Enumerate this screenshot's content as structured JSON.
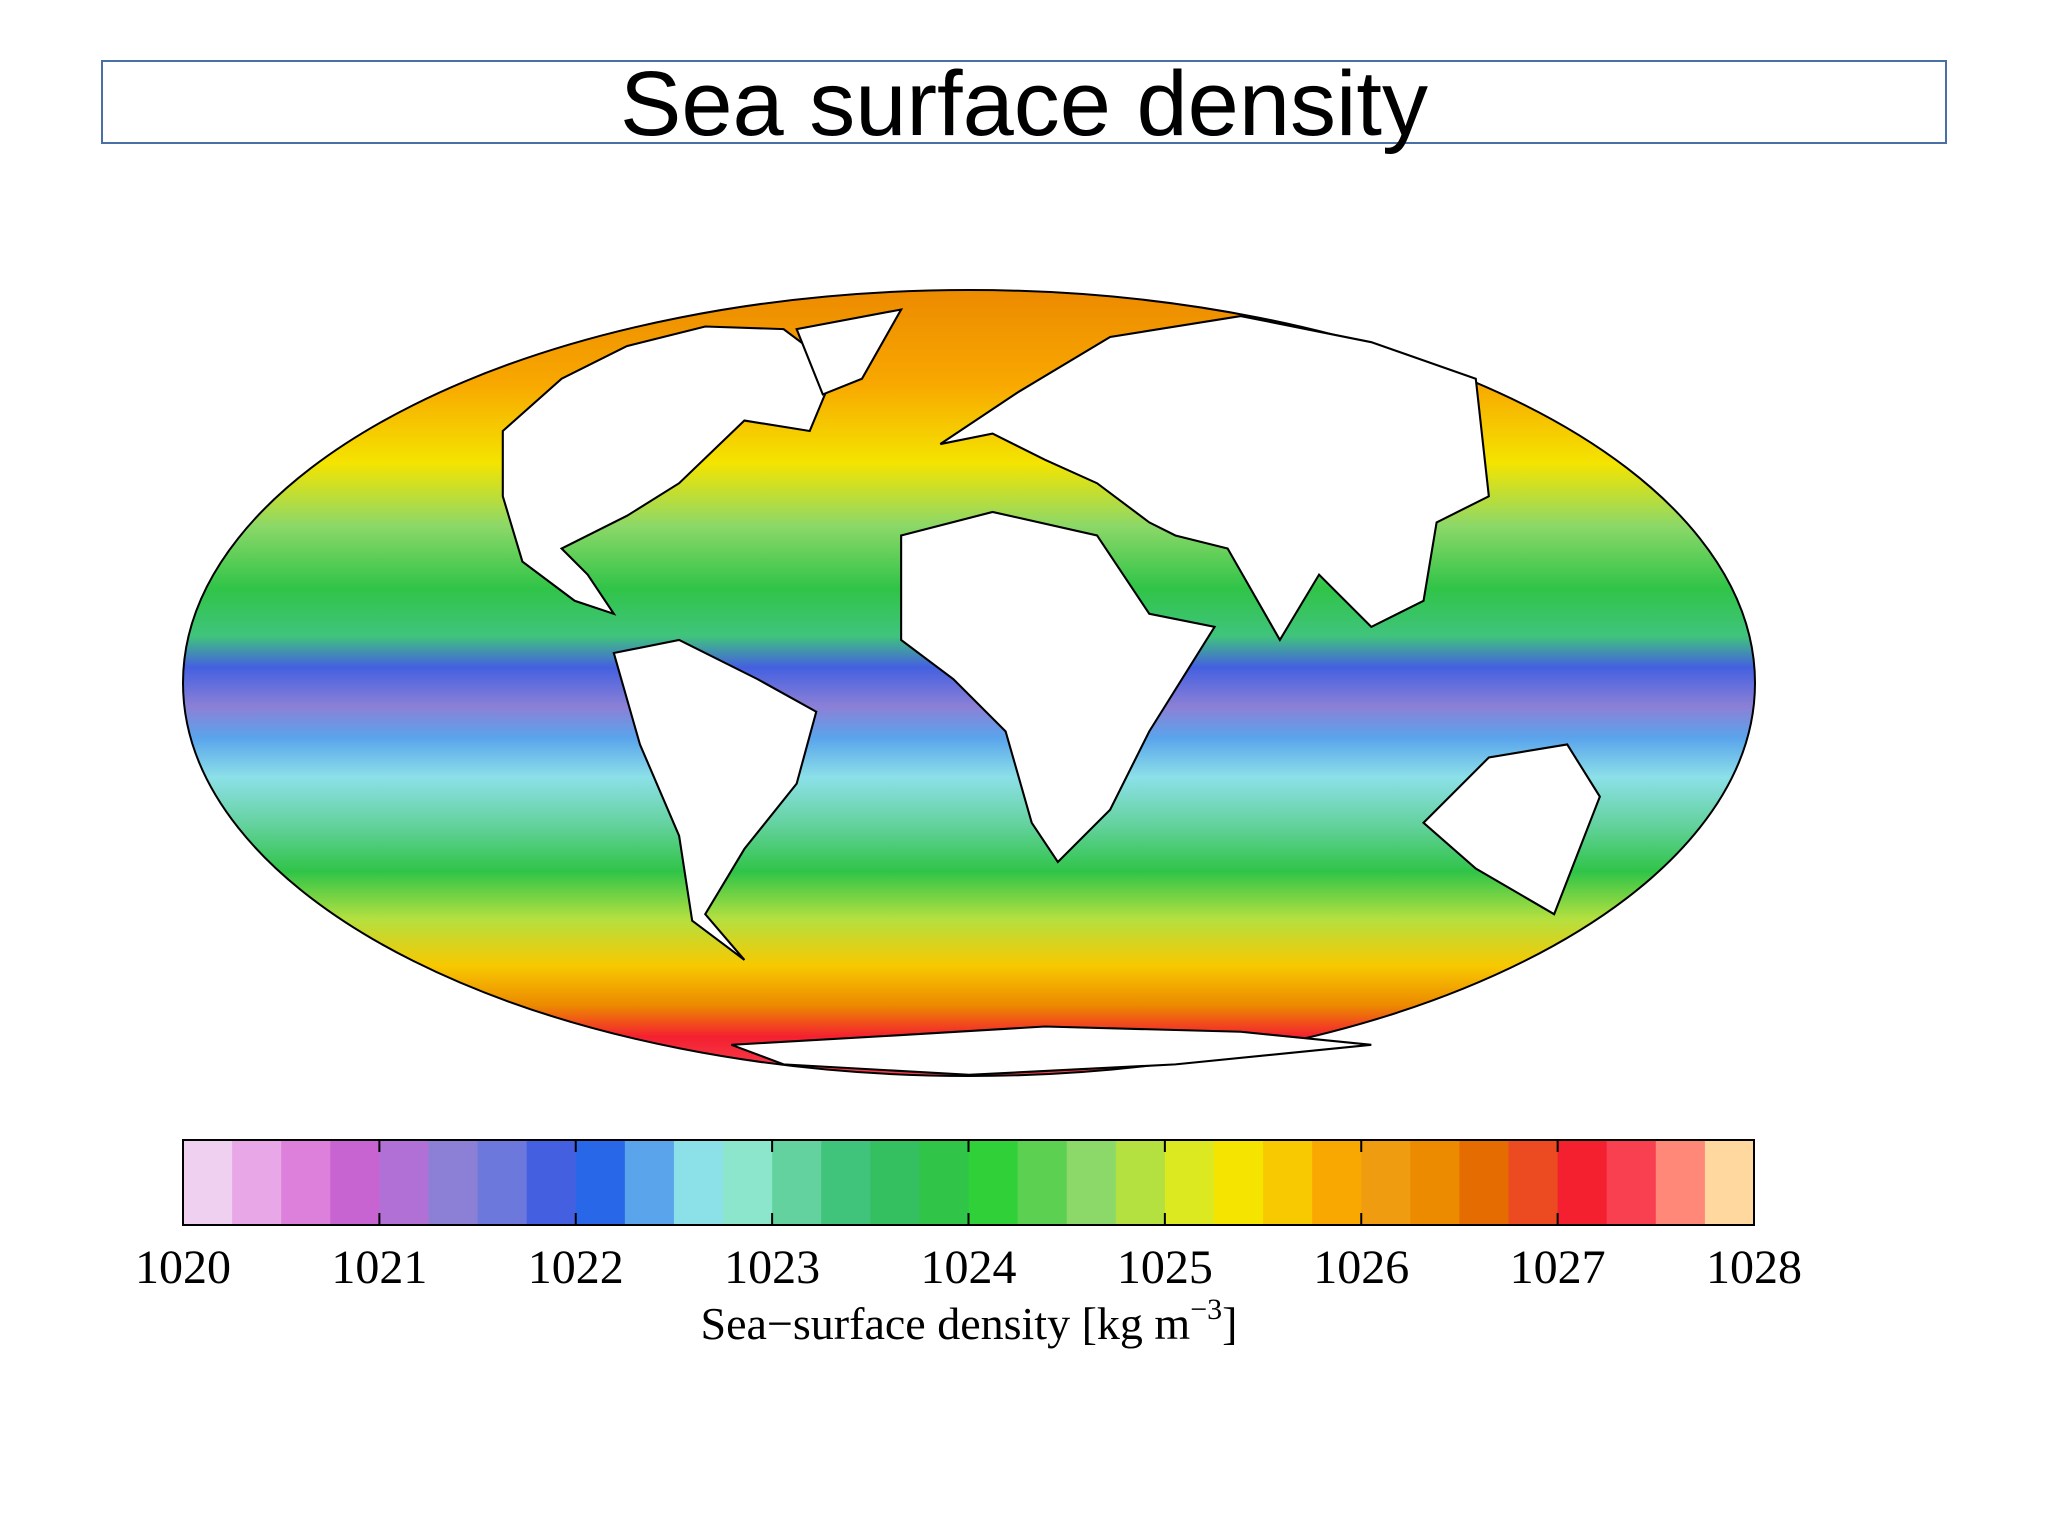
{
  "title": "Sea surface density",
  "colorbar": {
    "range": [
      1020,
      1028
    ],
    "ticks": [
      1020,
      1021,
      1022,
      1023,
      1024,
      1025,
      1026,
      1027,
      1028
    ],
    "colors": [
      "#f0d0f0",
      "#e8a8e8",
      "#dc80dc",
      "#c864d2",
      "#b070d6",
      "#8c80d6",
      "#6c78dc",
      "#4460e0",
      "#2868e8",
      "#5aa4ec",
      "#8ce0e8",
      "#8ce6cc",
      "#64d29e",
      "#40c47c",
      "#34c060",
      "#30c448",
      "#30d038",
      "#5cd050",
      "#8cd868",
      "#b4e040",
      "#dce820",
      "#f4e400",
      "#f8c800",
      "#f8a800",
      "#f09c10",
      "#ec8a00",
      "#e46c00",
      "#ec4a20",
      "#f42030",
      "#f84050",
      "#ff8878",
      "#ffd8a0"
    ],
    "label": {
      "text": "Sea−surface density [kg m",
      "superscript": "−3",
      "close": "]"
    }
  }
}
